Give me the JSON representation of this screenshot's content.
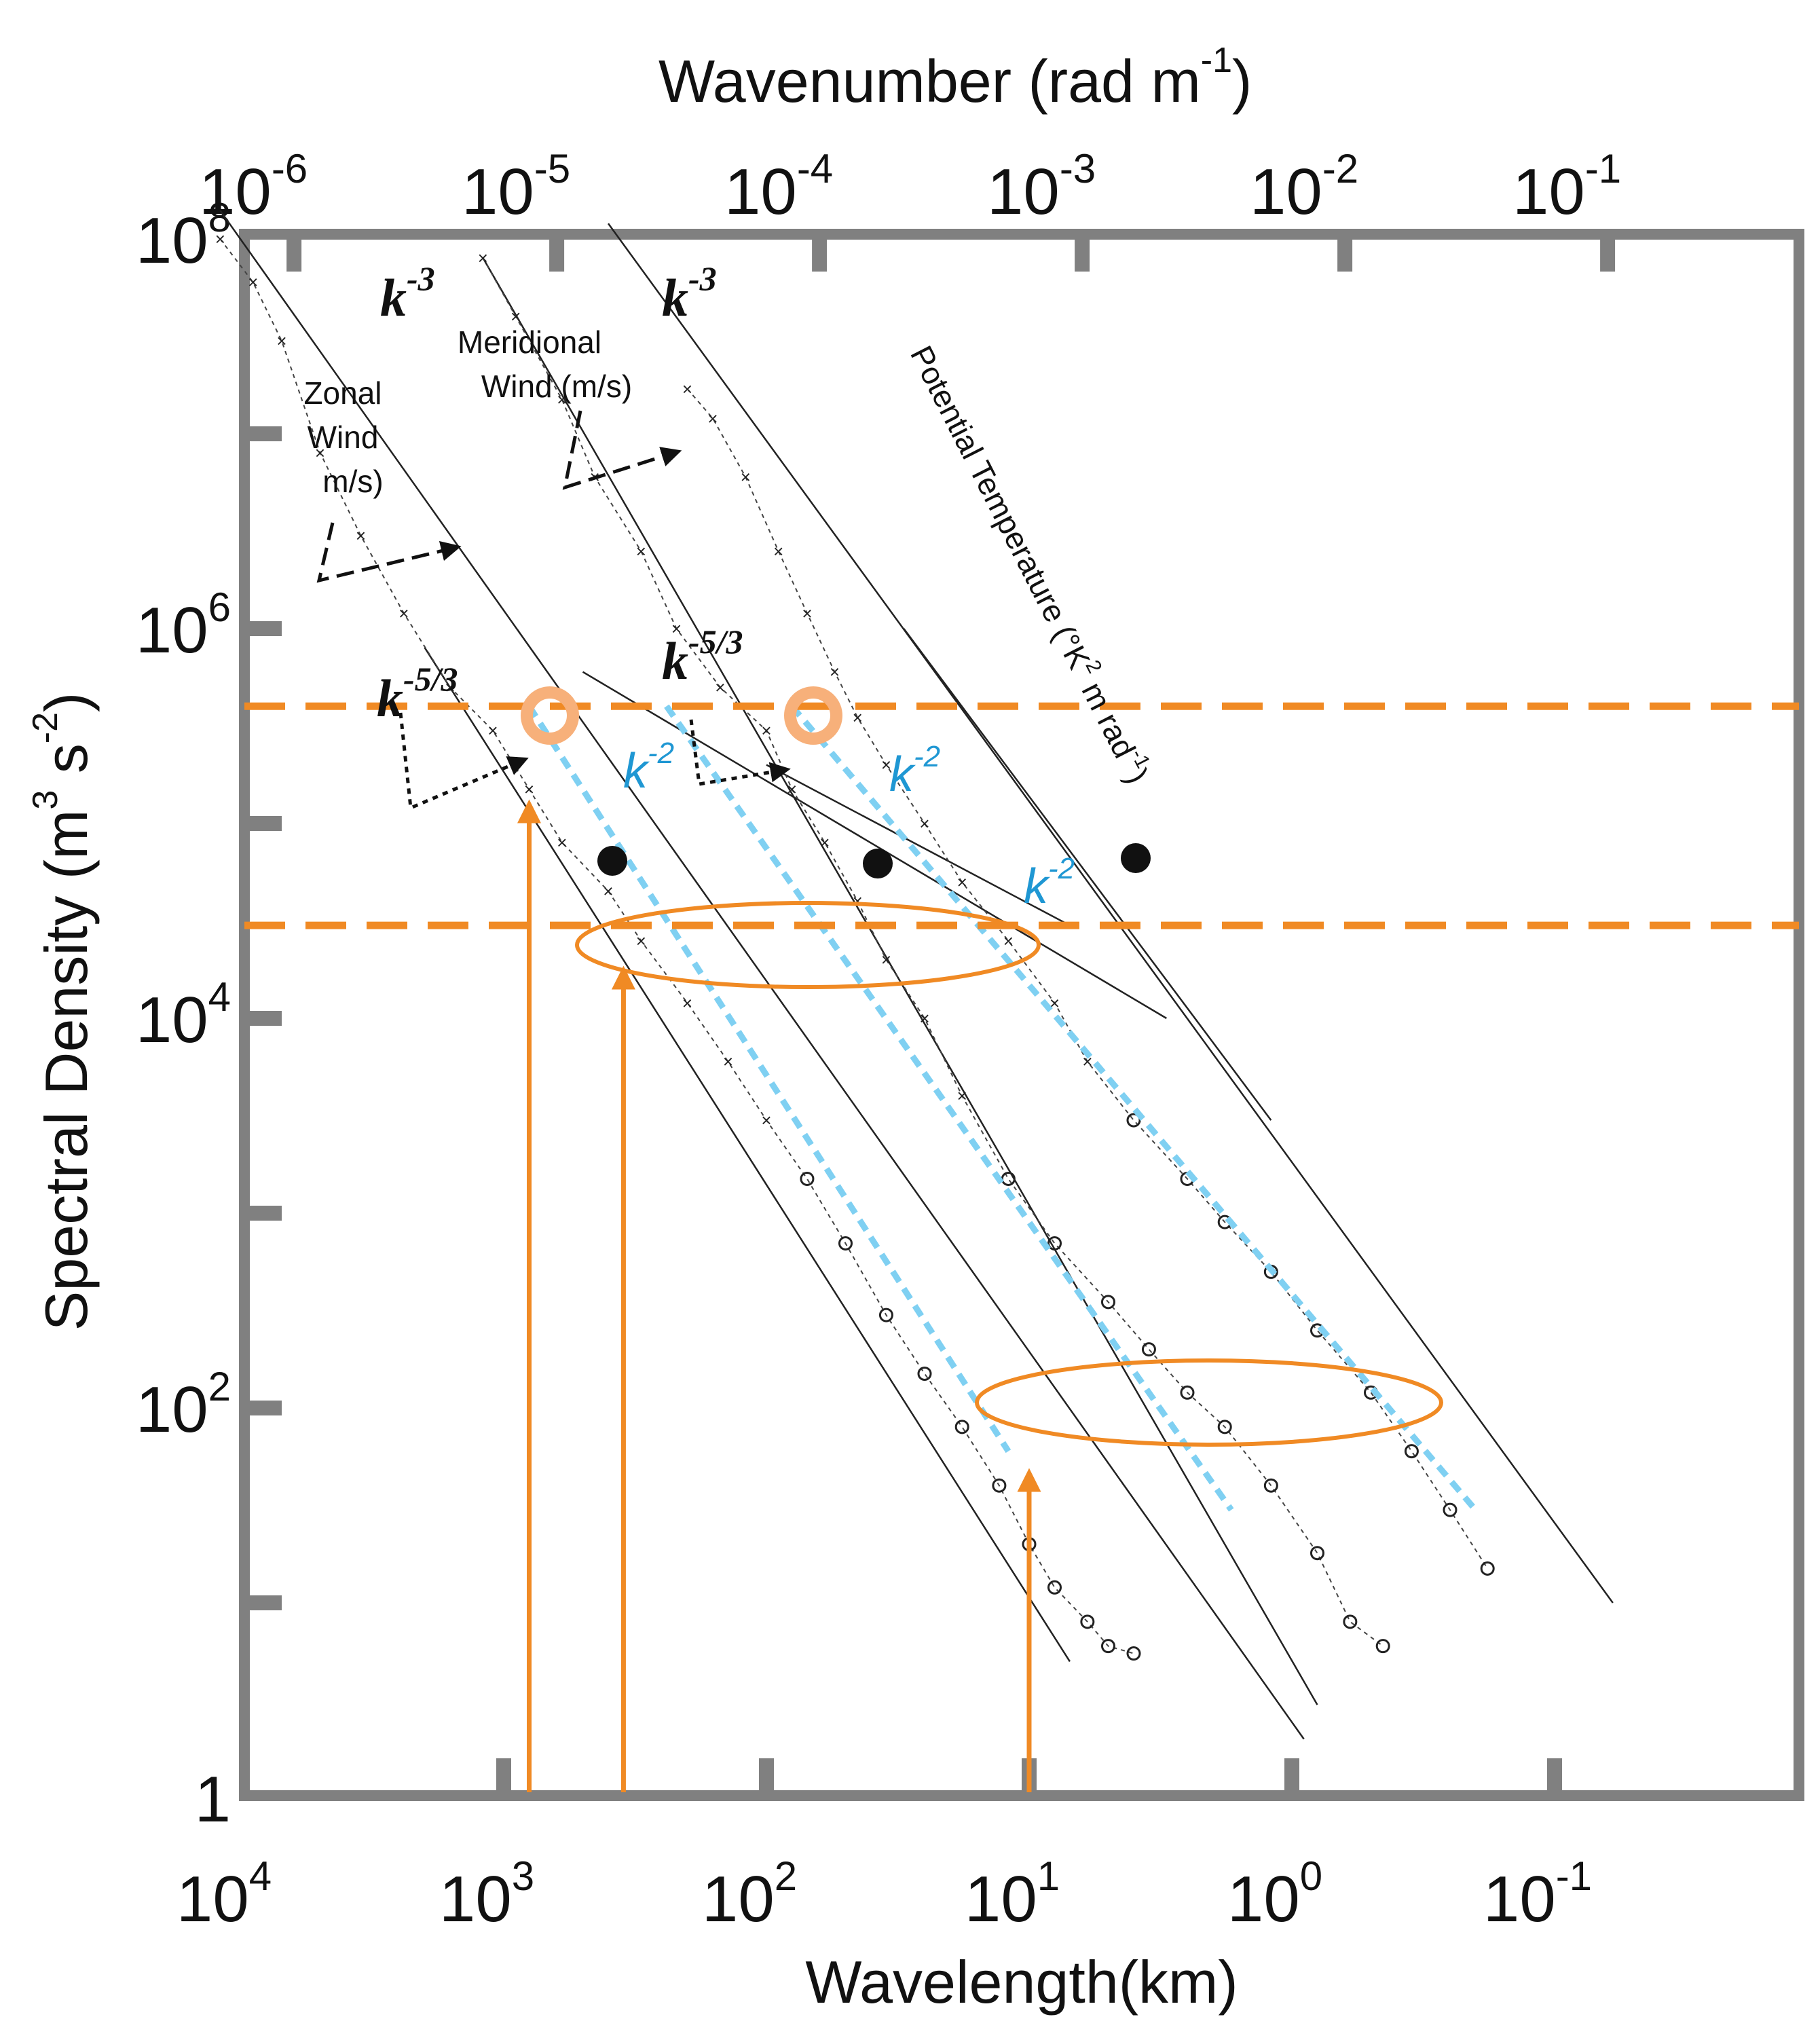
{
  "chart_data": {
    "type": "line",
    "xlabel_bottom": "Wavelength(km)",
    "xlabel_top": "Wavenumber (rad m",
    "xlabel_top_sup": "-1",
    "xlabel_top_close": ")",
    "ylabel": "Spectral Density (m",
    "ylabel_sup1": "3",
    "ylabel_mid": " s",
    "ylabel_sup2": "-2",
    "ylabel_close": ")",
    "scale": "log-log",
    "grid": false,
    "bottom_ticks": [
      {
        "base": "10",
        "exp": "4",
        "wavelength_km": 10000
      },
      {
        "base": "10",
        "exp": "3",
        "wavelength_km": 1000
      },
      {
        "base": "10",
        "exp": "2",
        "wavelength_km": 100
      },
      {
        "base": "10",
        "exp": "1",
        "wavelength_km": 10
      },
      {
        "base": "10",
        "exp": "0",
        "wavelength_km": 1
      },
      {
        "base": "10",
        "exp": "-1",
        "wavelength_km": 0.1
      }
    ],
    "top_ticks": [
      {
        "base": "10",
        "exp": "-6",
        "wavenumber": 1e-06
      },
      {
        "base": "10",
        "exp": "-5",
        "wavenumber": 1e-05
      },
      {
        "base": "10",
        "exp": "-4",
        "wavenumber": 0.0001
      },
      {
        "base": "10",
        "exp": "-3",
        "wavenumber": 0.001
      },
      {
        "base": "10",
        "exp": "-2",
        "wavenumber": 0.01
      },
      {
        "base": "10",
        "exp": "-1",
        "wavenumber": 0.1
      }
    ],
    "left_ticks": [
      {
        "base": "10",
        "exp": "8",
        "value": 100000000
      },
      {
        "base": "10",
        "exp": "6",
        "value": 1000000
      },
      {
        "base": "10",
        "exp": "4",
        "value": 10000
      },
      {
        "base": "10",
        "exp": "2",
        "value": 100
      },
      {
        "base": "1",
        "exp": "",
        "value": 1
      }
    ],
    "xlim_km": [
      16000,
      0.05
    ],
    "ylim": [
      1,
      100000000
    ],
    "series": [
      {
        "name": "Zonal Wind",
        "units": "m/s",
        "x_km": [
          12000,
          9000,
          7000,
          5000,
          3500,
          2400,
          1600,
          1100,
          800,
          600,
          400,
          300,
          200,
          140,
          100,
          70,
          50,
          35,
          25,
          18,
          13,
          10,
          8,
          6,
          5,
          4
        ],
        "y": [
          100000000.0,
          60000000.0,
          30000000.0,
          8000000.0,
          3000000.0,
          1200000.0,
          500000.0,
          300000.0,
          150000.0,
          80000.0,
          45000.0,
          25000.0,
          12000.0,
          6000,
          3000,
          1500,
          700,
          300,
          150,
          80,
          40,
          20,
          12,
          8,
          6,
          5.5
        ]
      },
      {
        "name": "Meridional Wind",
        "units": "m/s",
        "x_km": [
          1200,
          900,
          600,
          450,
          300,
          220,
          150,
          100,
          80,
          60,
          45,
          35,
          25,
          18,
          12,
          8,
          5,
          3.5,
          2.5,
          1.8,
          1.2,
          0.8,
          0.6,
          0.45
        ],
        "y": [
          80000000.0,
          40000000.0,
          15000000.0,
          6000000.0,
          2500000.0,
          1000000.0,
          500000.0,
          300000.0,
          150000.0,
          80000.0,
          40000.0,
          20000.0,
          10000.0,
          4000,
          1500,
          700,
          350,
          200,
          120,
          80,
          40,
          18,
          8,
          6
        ]
      },
      {
        "name": "Potential Temperature",
        "units": "°K² m rad⁻¹",
        "x_km": [
          200,
          160,
          120,
          90,
          70,
          55,
          45,
          35,
          25,
          18,
          12,
          8,
          6,
          4,
          2.5,
          1.8,
          1.2,
          0.8,
          0.5,
          0.35,
          0.25,
          0.18
        ],
        "y": [
          17000000.0,
          12000000.0,
          6000000.0,
          2500000.0,
          1200000.0,
          600000.0,
          350000.0,
          200000.0,
          100000.0,
          50000.0,
          25000.0,
          12000.0,
          6000,
          3000,
          1500,
          900,
          500,
          250,
          120,
          60,
          30,
          15
        ]
      }
    ],
    "reference_slopes": {
      "k3_label": "k",
      "k3_sup": "-3",
      "k53_label": "k",
      "k53_sup": "-5/3",
      "k2_label": "k",
      "k2_sup": "-2"
    },
    "annotations": {
      "zonal_label": [
        "Zonal",
        "Wind",
        "m/s)"
      ],
      "meridional_label": [
        "Meridional",
        "Wind (m/s)"
      ],
      "temperature_label": "Potential Temperature (°K",
      "temperature_sup": "2",
      "temperature_mid": " m rad",
      "temperature_sup2": "-1",
      "temperature_close": ")"
    },
    "horizontal_lines_y": [
      400000,
      30000
    ],
    "vertical_arrows_x_km": [
      800,
      350,
      10
    ],
    "accent_orange": "#f08a24",
    "accent_blue": "#1f97d3",
    "dash_blue": "#7fd0f2",
    "frame_grey": "#808080"
  }
}
